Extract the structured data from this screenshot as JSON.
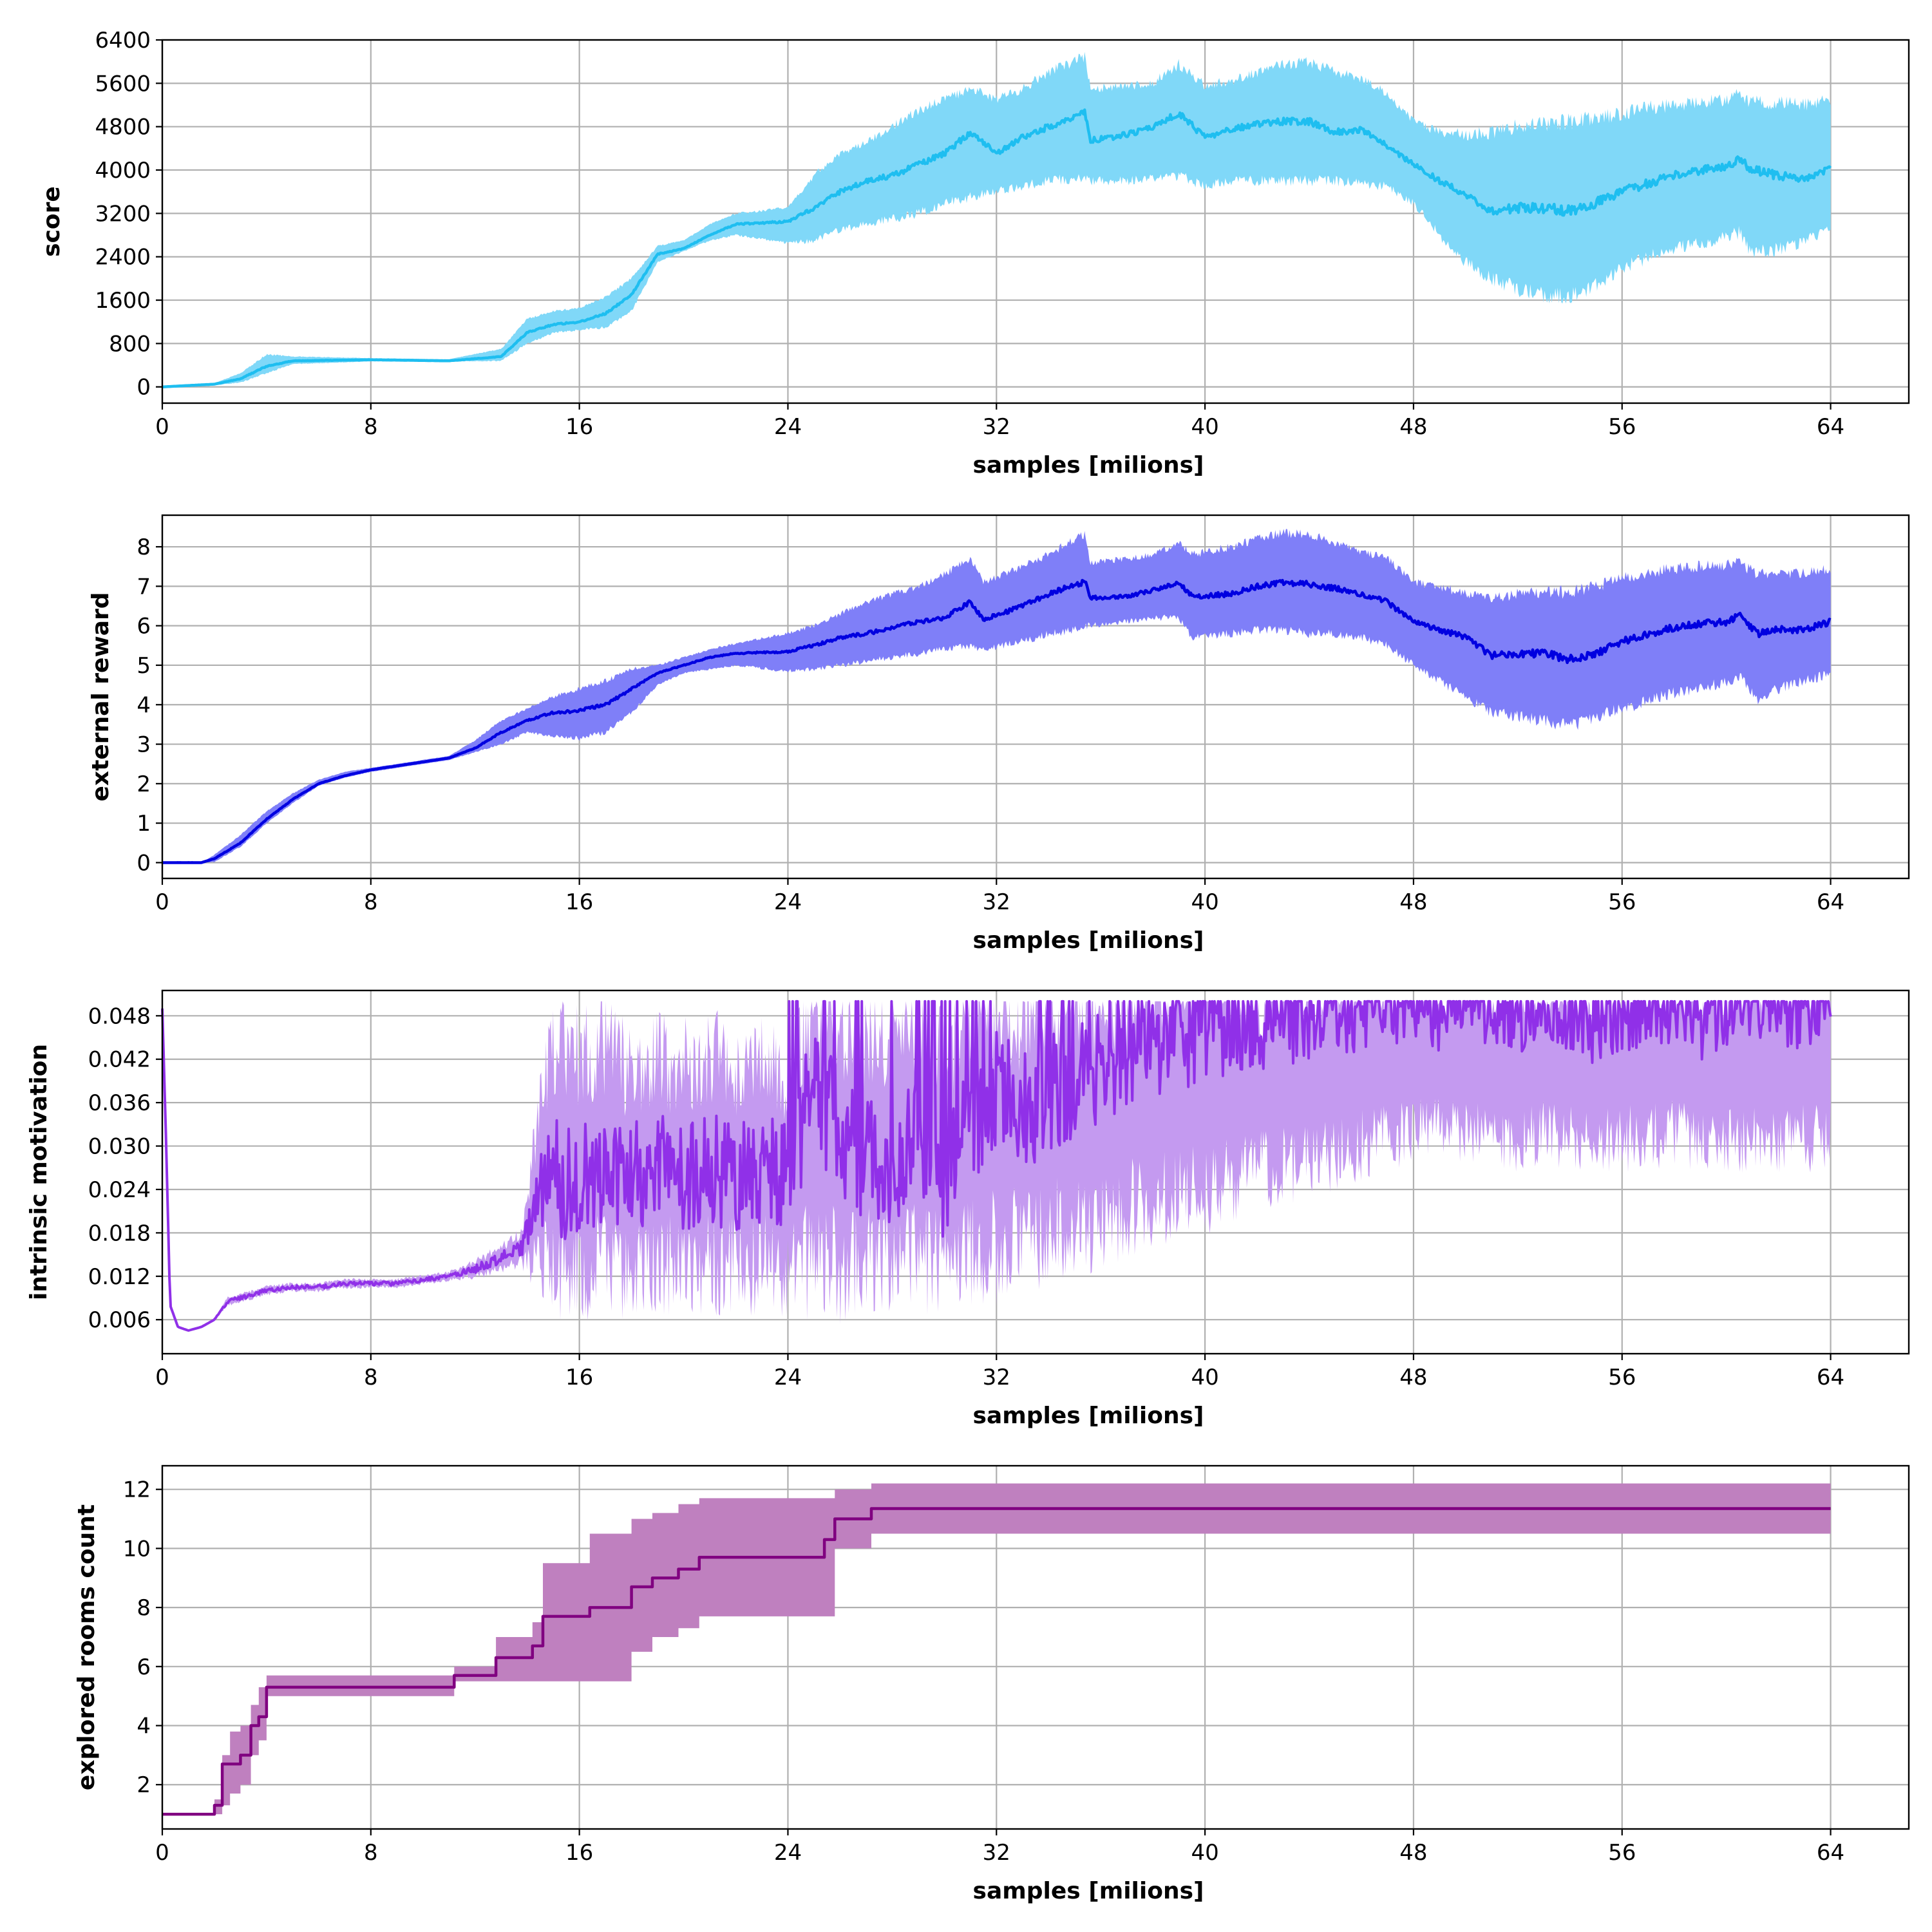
{
  "chart_data": [
    {
      "type": "line",
      "title": "",
      "xlabel": "samples [milions]",
      "ylabel": "score",
      "xlim": [
        0,
        67
      ],
      "ylim": [
        -300,
        6400
      ],
      "xticks": [
        0,
        8,
        16,
        24,
        32,
        40,
        48,
        56,
        64
      ],
      "yticks": [
        0,
        800,
        1600,
        2400,
        3200,
        4000,
        4800,
        5600,
        6400
      ],
      "tick_decimals": 0,
      "grid": true,
      "line_color": "#1ebef0",
      "band_color": "#80d8f8",
      "series": [
        {
          "name": "score",
          "x": [
            0,
            2,
            3,
            4,
            5,
            8,
            11,
            13,
            14,
            15,
            16,
            17,
            18,
            19,
            20,
            21,
            22,
            24,
            25,
            26,
            27,
            28,
            29,
            30,
            31,
            32,
            33,
            34,
            35,
            35.4,
            35.6,
            37,
            38,
            39,
            40,
            41,
            42,
            43,
            44,
            45,
            46,
            47,
            48,
            49,
            50,
            51,
            52,
            53,
            54,
            55,
            56,
            57,
            58,
            59,
            60,
            60.5,
            61,
            62,
            63,
            64
          ],
          "mean": [
            0,
            50,
            150,
            380,
            480,
            500,
            480,
            560,
            1000,
            1150,
            1200,
            1350,
            1700,
            2450,
            2550,
            2800,
            3000,
            3050,
            3300,
            3600,
            3800,
            3900,
            4100,
            4300,
            4700,
            4300,
            4600,
            4800,
            5000,
            5050,
            4550,
            4650,
            4800,
            5050,
            4600,
            4750,
            4850,
            4900,
            4900,
            4700,
            4750,
            4450,
            4100,
            3800,
            3550,
            3250,
            3300,
            3300,
            3250,
            3400,
            3600,
            3750,
            3900,
            4000,
            4050,
            4200,
            4000,
            3900,
            3850,
            4050
          ],
          "lower": [
            0,
            30,
            80,
            250,
            420,
            470,
            470,
            480,
            800,
            1000,
            1050,
            1100,
            1400,
            2300,
            2500,
            2700,
            2800,
            2650,
            2700,
            2900,
            3000,
            3100,
            3200,
            3400,
            3500,
            3600,
            3700,
            3800,
            3850,
            3900,
            3800,
            3800,
            3850,
            3900,
            3700,
            3800,
            3800,
            3800,
            3800,
            3800,
            3750,
            3700,
            3400,
            2800,
            2300,
            2000,
            1800,
            1700,
            1650,
            1900,
            2200,
            2400,
            2550,
            2650,
            2750,
            2850,
            2450,
            2550,
            2700,
            2950
          ],
          "upper": [
            0,
            70,
            250,
            600,
            560,
            530,
            510,
            700,
            1250,
            1400,
            1450,
            1650,
            2000,
            2600,
            2700,
            3000,
            3200,
            3300,
            3900,
            4300,
            4500,
            4800,
            5100,
            5300,
            5500,
            5300,
            5500,
            5800,
            6000,
            6100,
            5500,
            5550,
            5600,
            5950,
            5550,
            5650,
            5800,
            5950,
            6000,
            5800,
            5700,
            5400,
            4900,
            4700,
            4650,
            4700,
            4800,
            4850,
            4900,
            4950,
            5050,
            5150,
            5200,
            5250,
            5300,
            5400,
            5250,
            5250,
            5200,
            5300
          ]
        }
      ]
    },
    {
      "type": "line",
      "title": "",
      "xlabel": "samples [milions]",
      "ylabel": "external reward",
      "xlim": [
        0,
        67
      ],
      "ylim": [
        -0.4,
        8.8
      ],
      "xticks": [
        0,
        8,
        16,
        24,
        32,
        40,
        48,
        56,
        64
      ],
      "yticks": [
        0,
        1,
        2,
        3,
        4,
        5,
        6,
        7,
        8
      ],
      "tick_decimals": 0,
      "grid": true,
      "line_color": "#0000e0",
      "band_color": "#7f7ff8",
      "series": [
        {
          "name": "external reward",
          "x": [
            0,
            1.5,
            2,
            3,
            4,
            5,
            6,
            7,
            8,
            10,
            11,
            12,
            13,
            14,
            15,
            16,
            17,
            18,
            19,
            20,
            21,
            22,
            24,
            25,
            26,
            27,
            28,
            29,
            30,
            31,
            31.5,
            33,
            34,
            35,
            35.4,
            35.6,
            37,
            38,
            39,
            39.5,
            41,
            42,
            43,
            44,
            45,
            46,
            47,
            48,
            49,
            50,
            51,
            52,
            53,
            54,
            55,
            56,
            57,
            58,
            59,
            60,
            60.5,
            61.2,
            62,
            63,
            64
          ],
          "mean": [
            0,
            0,
            0.1,
            0.5,
            1.1,
            1.6,
            2.0,
            2.2,
            2.35,
            2.55,
            2.65,
            2.9,
            3.3,
            3.6,
            3.8,
            3.85,
            4.0,
            4.4,
            4.8,
            5.0,
            5.2,
            5.3,
            5.35,
            5.5,
            5.7,
            5.8,
            5.95,
            6.1,
            6.2,
            6.6,
            6.15,
            6.5,
            6.8,
            7.05,
            7.1,
            6.7,
            6.75,
            6.9,
            7.1,
            6.75,
            6.8,
            7.0,
            7.1,
            7.05,
            6.95,
            6.8,
            6.6,
            6.1,
            5.9,
            5.7,
            5.25,
            5.3,
            5.3,
            5.15,
            5.3,
            5.6,
            5.8,
            5.95,
            6.05,
            6.1,
            6.25,
            5.8,
            5.9,
            5.9,
            6.1
          ],
          "lower": [
            0,
            0,
            0.02,
            0.4,
            1.0,
            1.5,
            1.95,
            2.15,
            2.3,
            2.5,
            2.6,
            2.8,
            3.0,
            3.3,
            3.2,
            3.15,
            3.3,
            3.8,
            4.5,
            4.8,
            4.9,
            5.0,
            4.85,
            4.9,
            5.0,
            5.1,
            5.2,
            5.3,
            5.4,
            5.5,
            5.4,
            5.6,
            5.8,
            5.9,
            6.0,
            6.0,
            6.1,
            6.2,
            6.2,
            5.7,
            5.8,
            5.9,
            5.9,
            5.8,
            5.8,
            5.7,
            5.5,
            5.0,
            4.6,
            4.2,
            3.8,
            3.7,
            3.6,
            3.45,
            3.7,
            3.9,
            4.1,
            4.3,
            4.4,
            4.6,
            4.7,
            4.15,
            4.4,
            4.6,
            4.8
          ],
          "upper": [
            0,
            0,
            0.2,
            0.7,
            1.3,
            1.75,
            2.1,
            2.3,
            2.4,
            2.6,
            2.7,
            3.1,
            3.6,
            3.9,
            4.2,
            4.4,
            4.6,
            4.9,
            5.0,
            5.2,
            5.4,
            5.55,
            5.8,
            6.0,
            6.3,
            6.6,
            6.8,
            7.0,
            7.3,
            7.7,
            7.1,
            7.5,
            7.8,
            8.2,
            8.3,
            7.6,
            7.7,
            7.8,
            8.1,
            7.8,
            8.0,
            8.2,
            8.35,
            8.3,
            8.1,
            7.9,
            7.7,
            7.1,
            7.0,
            6.8,
            6.7,
            6.8,
            6.85,
            6.85,
            7.0,
            7.2,
            7.35,
            7.45,
            7.5,
            7.55,
            7.6,
            7.3,
            7.3,
            7.35,
            7.45
          ]
        }
      ]
    },
    {
      "type": "line",
      "title": "",
      "xlabel": "samples [milions]",
      "ylabel": "intrinsic motivation",
      "xlim": [
        0,
        67
      ],
      "ylim": [
        0.0013,
        0.0515
      ],
      "xticks": [
        0,
        8,
        16,
        24,
        32,
        40,
        48,
        56,
        64
      ],
      "yticks": [
        0.006,
        0.012,
        0.018,
        0.024,
        0.03,
        0.036,
        0.042,
        0.048
      ],
      "tick_decimals": 3,
      "grid": true,
      "line_color": "#9030e8",
      "band_color": "#c49af0",
      "cap": 0.05,
      "series": [
        {
          "name": "intrinsic motivation",
          "x": [
            0,
            0.15,
            0.3,
            0.6,
            1,
            1.5,
            2,
            2.5,
            3,
            4,
            5,
            6,
            7,
            8,
            9,
            10,
            11,
            12,
            13,
            13.8,
            14.5,
            15,
            16,
            17,
            18,
            19,
            20,
            21,
            22,
            23,
            24,
            24.5,
            25,
            26,
            27,
            28,
            29,
            30,
            31,
            32,
            33,
            34,
            35,
            36,
            37,
            38,
            39,
            40,
            41,
            42,
            43,
            44,
            45,
            46,
            47,
            48,
            49,
            50,
            51,
            52,
            53,
            54,
            55,
            56,
            57,
            58,
            59,
            60,
            61,
            62,
            63,
            64
          ],
          "mean": [
            0.049,
            0.03,
            0.008,
            0.005,
            0.0045,
            0.005,
            0.006,
            0.0085,
            0.009,
            0.01,
            0.0105,
            0.0105,
            0.011,
            0.011,
            0.011,
            0.0115,
            0.012,
            0.013,
            0.0145,
            0.016,
            0.023,
            0.025,
            0.026,
            0.027,
            0.026,
            0.027,
            0.026,
            0.027,
            0.026,
            0.027,
            0.026,
            0.033,
            0.038,
            0.032,
            0.028,
            0.027,
            0.033,
            0.025,
            0.034,
            0.038,
            0.035,
            0.037,
            0.039,
            0.041,
            0.043,
            0.044,
            0.045,
            0.046,
            0.046,
            0.047,
            0.047,
            0.048,
            0.049,
            0.048,
            0.049,
            0.049,
            0.048,
            0.049,
            0.049,
            0.048,
            0.049,
            0.048,
            0.046,
            0.048,
            0.049,
            0.049,
            0.046,
            0.049,
            0.049,
            0.048,
            0.049,
            0.05
          ],
          "lower": [
            0.049,
            0.03,
            0.008,
            0.005,
            0.0045,
            0.005,
            0.006,
            0.008,
            0.0085,
            0.0095,
            0.01,
            0.01,
            0.0105,
            0.0105,
            0.0105,
            0.011,
            0.0115,
            0.012,
            0.013,
            0.014,
            0.014,
            0.0135,
            0.013,
            0.0135,
            0.013,
            0.0135,
            0.013,
            0.014,
            0.013,
            0.0135,
            0.013,
            0.013,
            0.0145,
            0.0135,
            0.014,
            0.0145,
            0.0145,
            0.014,
            0.015,
            0.016,
            0.017,
            0.018,
            0.019,
            0.02,
            0.021,
            0.022,
            0.023,
            0.024,
            0.025,
            0.026,
            0.027,
            0.028,
            0.029,
            0.03,
            0.031,
            0.032,
            0.032,
            0.032,
            0.031,
            0.031,
            0.032,
            0.031,
            0.031,
            0.031,
            0.031,
            0.032,
            0.031,
            0.031,
            0.031,
            0.031,
            0.031,
            0.031
          ],
          "upper": [
            0.049,
            0.03,
            0.008,
            0.005,
            0.0045,
            0.005,
            0.006,
            0.009,
            0.0095,
            0.0105,
            0.011,
            0.011,
            0.0115,
            0.0115,
            0.0115,
            0.012,
            0.0125,
            0.014,
            0.016,
            0.018,
            0.036,
            0.045,
            0.042,
            0.044,
            0.04,
            0.042,
            0.041,
            0.043,
            0.041,
            0.042,
            0.04,
            0.046,
            0.049,
            0.046,
            0.045,
            0.044,
            0.047,
            0.043,
            0.048,
            0.049,
            0.048,
            0.049,
            0.049,
            0.049,
            0.05,
            0.05,
            0.05,
            0.05,
            0.05,
            0.05,
            0.05,
            0.05,
            0.05,
            0.05,
            0.05,
            0.05,
            0.05,
            0.05,
            0.05,
            0.05,
            0.05,
            0.05,
            0.05,
            0.05,
            0.05,
            0.05,
            0.05,
            0.05,
            0.05,
            0.05,
            0.05,
            0.05
          ]
        }
      ]
    },
    {
      "type": "step",
      "title": "",
      "xlabel": "samples [milions]",
      "ylabel": "explored rooms count",
      "xlim": [
        0,
        67
      ],
      "ylim": [
        0.5,
        12.8
      ],
      "xticks": [
        0,
        8,
        16,
        24,
        32,
        40,
        48,
        56,
        64
      ],
      "yticks": [
        2,
        4,
        6,
        8,
        10,
        12
      ],
      "tick_decimals": 0,
      "grid": true,
      "line_color": "#800080",
      "band_color": "#bf80bf",
      "series": [
        {
          "name": "explored rooms count",
          "x": [
            0,
            2.0,
            2.3,
            2.6,
            3.0,
            3.4,
            3.7,
            4.0,
            11.2,
            12.8,
            14.2,
            14.6,
            16.4,
            18.0,
            18.8,
            19.8,
            20.6,
            25.4,
            25.8,
            27.2,
            64
          ],
          "mean": [
            1.0,
            1.3,
            2.7,
            2.7,
            3.0,
            4.0,
            4.3,
            5.3,
            5.7,
            6.3,
            6.7,
            7.7,
            8.0,
            8.7,
            9.0,
            9.3,
            9.7,
            10.3,
            11.0,
            11.35,
            11.35
          ],
          "lower": [
            1.0,
            1.0,
            1.3,
            1.7,
            2.0,
            3.0,
            3.5,
            5.0,
            5.5,
            5.5,
            5.5,
            5.5,
            5.5,
            6.5,
            7.0,
            7.3,
            7.7,
            7.7,
            10.0,
            10.5,
            10.5
          ],
          "upper": [
            1.0,
            1.5,
            3.0,
            3.8,
            4.0,
            4.7,
            5.3,
            5.7,
            6.0,
            7.0,
            7.5,
            9.5,
            10.5,
            11.0,
            11.2,
            11.5,
            11.7,
            11.7,
            12.0,
            12.2,
            12.2
          ]
        }
      ]
    }
  ]
}
